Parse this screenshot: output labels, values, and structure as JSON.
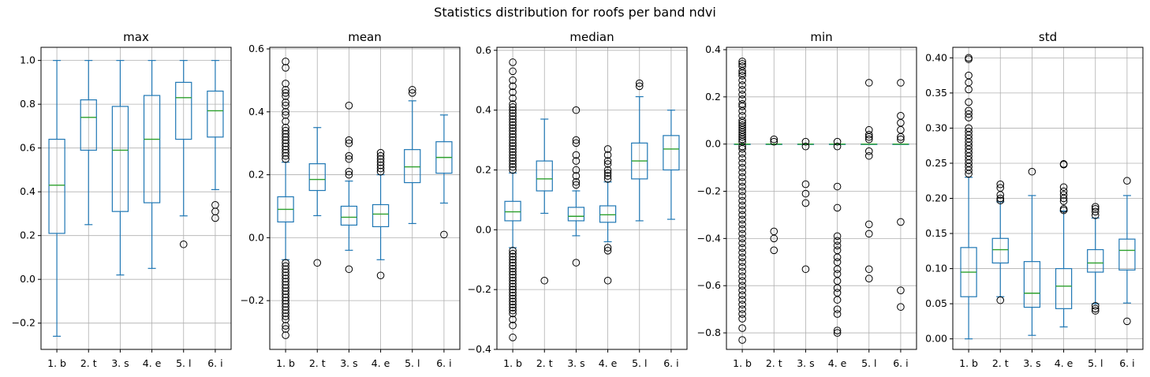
{
  "figure": {
    "suptitle": "Statistics distribution for roofs per band ndvi"
  },
  "colors": {
    "box": "#1f77b4",
    "median": "#2ca02c",
    "grid": "#b0b0b0",
    "flier": "#000000"
  },
  "chart_data": [
    {
      "type": "box",
      "title": "max",
      "categories": [
        "1. b",
        "2. t",
        "3. s",
        "4. e",
        "5. l",
        "6. i"
      ],
      "ylim": [
        -0.32,
        1.06
      ],
      "yticks": [
        -0.2,
        0.0,
        0.2,
        0.4,
        0.6,
        0.8,
        1.0
      ],
      "ytick_labels": [
        "−0.2",
        "0.0",
        "0.2",
        "0.4",
        "0.6",
        "0.8",
        "1.0"
      ],
      "grid": true,
      "boxes": [
        {
          "q1": 0.21,
          "median": 0.43,
          "q3": 0.64,
          "whislo": -0.26,
          "whishi": 1.0,
          "fliers": []
        },
        {
          "q1": 0.59,
          "median": 0.74,
          "q3": 0.82,
          "whislo": 0.25,
          "whishi": 1.0,
          "fliers": []
        },
        {
          "q1": 0.31,
          "median": 0.59,
          "q3": 0.79,
          "whislo": 0.02,
          "whishi": 1.0,
          "fliers": []
        },
        {
          "q1": 0.35,
          "median": 0.64,
          "q3": 0.84,
          "whislo": 0.05,
          "whishi": 1.0,
          "fliers": []
        },
        {
          "q1": 0.64,
          "median": 0.83,
          "q3": 0.9,
          "whislo": 0.29,
          "whishi": 1.0,
          "fliers": [
            0.16
          ]
        },
        {
          "q1": 0.65,
          "median": 0.77,
          "q3": 0.86,
          "whislo": 0.41,
          "whishi": 1.0,
          "fliers": [
            0.34,
            0.31,
            0.28
          ]
        }
      ]
    },
    {
      "type": "box",
      "title": "mean",
      "categories": [
        "1. b",
        "2. t",
        "3. s",
        "4. e",
        "5. l",
        "6. i"
      ],
      "ylim": [
        -0.355,
        0.605
      ],
      "yticks": [
        -0.2,
        0.0,
        0.2,
        0.4,
        0.6
      ],
      "ytick_labels": [
        "−0.2",
        "0.0",
        "0.2",
        "0.4",
        "0.6"
      ],
      "grid": true,
      "boxes": [
        {
          "q1": 0.05,
          "median": 0.09,
          "q3": 0.13,
          "whislo": -0.07,
          "whishi": 0.24,
          "fliers": [
            0.56,
            0.54,
            0.49,
            0.47,
            0.46,
            0.45,
            0.43,
            0.42,
            0.4,
            0.39,
            0.37,
            0.35,
            0.34,
            0.33,
            0.32,
            0.31,
            0.3,
            0.29,
            0.28,
            0.27,
            0.26,
            0.25,
            -0.08,
            -0.09,
            -0.1,
            -0.11,
            -0.12,
            -0.13,
            -0.14,
            -0.15,
            -0.16,
            -0.17,
            -0.18,
            -0.19,
            -0.2,
            -0.21,
            -0.22,
            -0.23,
            -0.24,
            -0.25,
            -0.26,
            -0.28,
            -0.29,
            -0.31
          ]
        },
        {
          "q1": 0.15,
          "median": 0.185,
          "q3": 0.235,
          "whislo": 0.07,
          "whishi": 0.35,
          "fliers": [
            -0.08
          ]
        },
        {
          "q1": 0.04,
          "median": 0.065,
          "q3": 0.1,
          "whislo": -0.04,
          "whishi": 0.18,
          "fliers": [
            0.42,
            0.31,
            0.3,
            0.26,
            0.25,
            0.21,
            0.2,
            -0.1
          ]
        },
        {
          "q1": 0.035,
          "median": 0.075,
          "q3": 0.105,
          "whislo": -0.07,
          "whishi": 0.2,
          "fliers": [
            0.27,
            0.26,
            0.25,
            0.24,
            0.23,
            0.22,
            0.21,
            -0.12
          ]
        },
        {
          "q1": 0.175,
          "median": 0.225,
          "q3": 0.28,
          "whislo": 0.045,
          "whishi": 0.435,
          "fliers": [
            0.47,
            0.46
          ]
        },
        {
          "q1": 0.205,
          "median": 0.255,
          "q3": 0.305,
          "whislo": 0.11,
          "whishi": 0.39,
          "fliers": [
            0.01
          ]
        }
      ]
    },
    {
      "type": "box",
      "title": "median",
      "categories": [
        "1. b",
        "2. t",
        "3. s",
        "4. e",
        "5. l",
        "6. i"
      ],
      "ylim": [
        -0.4,
        0.61
      ],
      "yticks": [
        -0.4,
        -0.2,
        0.0,
        0.2,
        0.4,
        0.6
      ],
      "ytick_labels": [
        "−0.4",
        "−0.2",
        "0.0",
        "0.2",
        "0.4",
        "0.6"
      ],
      "grid": true,
      "boxes": [
        {
          "q1": 0.03,
          "median": 0.06,
          "q3": 0.095,
          "whislo": -0.06,
          "whishi": 0.19,
          "fliers": [
            0.56,
            0.53,
            0.5,
            0.48,
            0.46,
            0.44,
            0.42,
            0.41,
            0.4,
            0.39,
            0.38,
            0.37,
            0.36,
            0.35,
            0.34,
            0.33,
            0.32,
            0.31,
            0.3,
            0.29,
            0.28,
            0.27,
            0.26,
            0.25,
            0.24,
            0.23,
            0.22,
            0.21,
            0.2,
            -0.07,
            -0.08,
            -0.09,
            -0.1,
            -0.11,
            -0.12,
            -0.13,
            -0.14,
            -0.15,
            -0.16,
            -0.17,
            -0.18,
            -0.19,
            -0.2,
            -0.21,
            -0.22,
            -0.23,
            -0.24,
            -0.25,
            -0.26,
            -0.27,
            -0.28,
            -0.3,
            -0.32,
            -0.36
          ]
        },
        {
          "q1": 0.13,
          "median": 0.17,
          "q3": 0.23,
          "whislo": 0.055,
          "whishi": 0.37,
          "fliers": [
            -0.17
          ]
        },
        {
          "q1": 0.03,
          "median": 0.045,
          "q3": 0.075,
          "whislo": -0.02,
          "whishi": 0.13,
          "fliers": [
            0.4,
            0.3,
            0.29,
            0.25,
            0.23,
            0.2,
            0.18,
            0.16,
            0.15,
            -0.11
          ]
        },
        {
          "q1": 0.025,
          "median": 0.05,
          "q3": 0.08,
          "whislo": -0.04,
          "whishi": 0.16,
          "fliers": [
            0.27,
            0.25,
            0.23,
            0.22,
            0.2,
            0.19,
            0.18,
            0.17,
            -0.06,
            -0.07,
            -0.17
          ]
        },
        {
          "q1": 0.17,
          "median": 0.23,
          "q3": 0.29,
          "whislo": 0.03,
          "whishi": 0.445,
          "fliers": [
            0.49,
            0.48
          ]
        },
        {
          "q1": 0.2,
          "median": 0.27,
          "q3": 0.315,
          "whislo": 0.035,
          "whishi": 0.4,
          "fliers": []
        }
      ]
    },
    {
      "type": "box",
      "title": "min",
      "categories": [
        "1. b",
        "2. t",
        "3. s",
        "4. e",
        "5. l",
        "6. i"
      ],
      "ylim": [
        -0.87,
        0.41
      ],
      "yticks": [
        -0.8,
        -0.6,
        -0.4,
        -0.2,
        0.0,
        0.2,
        0.4
      ],
      "ytick_labels": [
        "−0.8",
        "−0.6",
        "−0.4",
        "−0.2",
        "0.0",
        "0.2",
        "0.4"
      ],
      "grid": true,
      "boxes": [
        {
          "q1": 0.0,
          "median": 0.0,
          "q3": 0.0,
          "whislo": 0.0,
          "whishi": 0.0,
          "fliers": [
            0.35,
            0.34,
            0.33,
            0.31,
            0.3,
            0.29,
            0.27,
            0.25,
            0.23,
            0.21,
            0.19,
            0.17,
            0.16,
            0.14,
            0.12,
            0.1,
            0.09,
            0.08,
            0.07,
            0.06,
            0.05,
            0.04,
            0.03,
            0.02,
            0.01,
            -0.01,
            -0.02,
            -0.04,
            -0.06,
            -0.08,
            -0.1,
            -0.12,
            -0.14,
            -0.16,
            -0.18,
            -0.2,
            -0.22,
            -0.24,
            -0.26,
            -0.28,
            -0.3,
            -0.32,
            -0.34,
            -0.36,
            -0.38,
            -0.4,
            -0.42,
            -0.44,
            -0.46,
            -0.48,
            -0.5,
            -0.52,
            -0.54,
            -0.56,
            -0.58,
            -0.6,
            -0.62,
            -0.64,
            -0.66,
            -0.68,
            -0.7,
            -0.72,
            -0.74,
            -0.78,
            -0.83
          ]
        },
        {
          "q1": 0.0,
          "median": 0.0,
          "q3": 0.0,
          "whislo": 0.0,
          "whishi": 0.0,
          "fliers": [
            0.02,
            0.01,
            -0.37,
            -0.4,
            -0.45
          ]
        },
        {
          "q1": 0.0,
          "median": 0.0,
          "q3": 0.0,
          "whislo": 0.0,
          "whishi": 0.0,
          "fliers": [
            0.01,
            -0.01,
            -0.17,
            -0.21,
            -0.25,
            -0.53
          ]
        },
        {
          "q1": 0.0,
          "median": 0.0,
          "q3": 0.0,
          "whislo": 0.0,
          "whishi": 0.0,
          "fliers": [
            0.01,
            -0.01,
            -0.18,
            -0.27,
            -0.39,
            -0.41,
            -0.43,
            -0.45,
            -0.48,
            -0.5,
            -0.53,
            -0.55,
            -0.58,
            -0.61,
            -0.63,
            -0.66,
            -0.7,
            -0.72,
            -0.79,
            -0.8
          ]
        },
        {
          "q1": 0.0,
          "median": 0.0,
          "q3": 0.0,
          "whislo": 0.0,
          "whishi": 0.0,
          "fliers": [
            0.26,
            0.06,
            0.04,
            0.03,
            0.02,
            -0.03,
            -0.05,
            -0.34,
            -0.38,
            -0.53,
            -0.57
          ]
        },
        {
          "q1": 0.0,
          "median": 0.0,
          "q3": 0.0,
          "whislo": 0.0,
          "whishi": 0.0,
          "fliers": [
            0.26,
            0.12,
            0.09,
            0.06,
            0.03,
            0.02,
            -0.33,
            -0.62,
            -0.69
          ]
        }
      ]
    },
    {
      "type": "box",
      "title": "std",
      "categories": [
        "1. b",
        "2. t",
        "3. s",
        "4. e",
        "5. l",
        "6. i"
      ],
      "ylim": [
        -0.015,
        0.415
      ],
      "yticks": [
        0.0,
        0.05,
        0.1,
        0.15,
        0.2,
        0.25,
        0.3,
        0.35,
        0.4
      ],
      "ytick_labels": [
        "0.00",
        "0.05",
        "0.10",
        "0.15",
        "0.20",
        "0.25",
        "0.30",
        "0.35",
        "0.40"
      ],
      "grid": true,
      "boxes": [
        {
          "q1": 0.06,
          "median": 0.095,
          "q3": 0.13,
          "whislo": 0.0,
          "whishi": 0.23,
          "fliers": [
            0.4,
            0.398,
            0.375,
            0.365,
            0.355,
            0.337,
            0.325,
            0.32,
            0.315,
            0.3,
            0.295,
            0.29,
            0.285,
            0.28,
            0.275,
            0.27,
            0.265,
            0.26,
            0.255,
            0.25,
            0.245,
            0.24,
            0.235
          ]
        },
        {
          "q1": 0.108,
          "median": 0.127,
          "q3": 0.143,
          "whislo": 0.06,
          "whishi": 0.195,
          "fliers": [
            0.22,
            0.215,
            0.205,
            0.2,
            0.197,
            0.055
          ]
        },
        {
          "q1": 0.045,
          "median": 0.065,
          "q3": 0.11,
          "whislo": 0.005,
          "whishi": 0.204,
          "fliers": [
            0.238
          ]
        },
        {
          "q1": 0.043,
          "median": 0.075,
          "q3": 0.1,
          "whislo": 0.017,
          "whishi": 0.182,
          "fliers": [
            0.249,
            0.248,
            0.216,
            0.21,
            0.205,
            0.2,
            0.196,
            0.185,
            0.183
          ]
        },
        {
          "q1": 0.095,
          "median": 0.108,
          "q3": 0.127,
          "whislo": 0.05,
          "whishi": 0.172,
          "fliers": [
            0.188,
            0.185,
            0.181,
            0.176,
            0.047,
            0.043,
            0.04
          ]
        },
        {
          "q1": 0.098,
          "median": 0.126,
          "q3": 0.142,
          "whislo": 0.051,
          "whishi": 0.204,
          "fliers": [
            0.225,
            0.025
          ]
        }
      ]
    }
  ]
}
